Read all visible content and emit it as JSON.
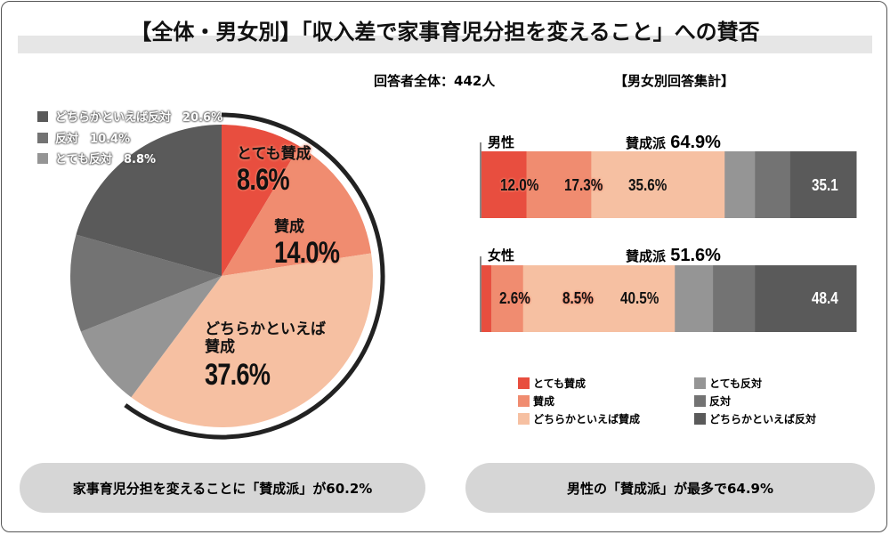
{
  "title": "【全体・男女別】「収入差で家事育児分担を変えること」への賛否",
  "respondents": "回答者全体：442人",
  "gender_subtitle": "【男女別回答集計】",
  "colors": {
    "very_agree": "#e84e3f",
    "agree": "#f08c70",
    "somewhat_agree": "#f6c0a2",
    "very_disagree": "#959595",
    "disagree": "#737373",
    "somewhat_disagree": "#5a5a5a"
  },
  "chart_data": [
    {
      "type": "pie",
      "slices": [
        {
          "label": "とても賛成",
          "value": 8.6,
          "text": "8.6%"
        },
        {
          "label": "賛成",
          "value": 14.0,
          "text": "14.0%"
        },
        {
          "label": "どちらかといえば賛成",
          "label_line1": "どちらかといえば",
          "label_line2": "賛成",
          "value": 37.6,
          "text": "37.6%"
        },
        {
          "label": "とても反対",
          "value": 8.8,
          "text": "8.8%"
        },
        {
          "label": "反対",
          "value": 10.4,
          "text": "10.4%"
        },
        {
          "label": "どちらかといえば反対",
          "value": 20.6,
          "text": "20.6%"
        }
      ],
      "legend": [
        "どちらかといえば反対",
        "反対",
        "とても反対"
      ],
      "legend_placement": "top-left"
    },
    {
      "type": "bar",
      "orientation": "horizontal-stacked",
      "categories": [
        "男性",
        "女性"
      ],
      "series": [
        {
          "name": "とても賛成",
          "values": [
            12.0,
            2.6
          ]
        },
        {
          "name": "賛成",
          "values": [
            17.3,
            8.5
          ]
        },
        {
          "name": "どちらかといえば賛成",
          "values": [
            35.6,
            40.5
          ]
        },
        {
          "name": "とても反対",
          "values": [
            8.1,
            10.2
          ]
        },
        {
          "name": "反対",
          "values": [
            9.4,
            11.2
          ]
        },
        {
          "name": "どちらかといえば反対",
          "values": [
            17.6,
            27.0
          ]
        }
      ],
      "rows": [
        {
          "label": "男性",
          "agree_label": "賛成派",
          "agree_total": "64.9%",
          "labels": [
            "12.0%",
            "17.3%",
            "35.6%"
          ],
          "disagree_total": "35.1"
        },
        {
          "label": "女性",
          "agree_label": "賛成派",
          "agree_total": "51.6%",
          "labels": [
            "2.6%",
            "8.5%",
            "40.5%"
          ],
          "disagree_total": "48.4"
        }
      ],
      "legend": [
        "とても賛成",
        "賛成",
        "どちらかといえば賛成",
        "とても反対",
        "反対",
        "どちらかといえば反対"
      ],
      "legend_placement": "bottom"
    }
  ],
  "summary_left": "家事育児分担を変えることに「賛成派」が60.2%",
  "summary_right": "男性の「賛成派」が最多で64.9%"
}
